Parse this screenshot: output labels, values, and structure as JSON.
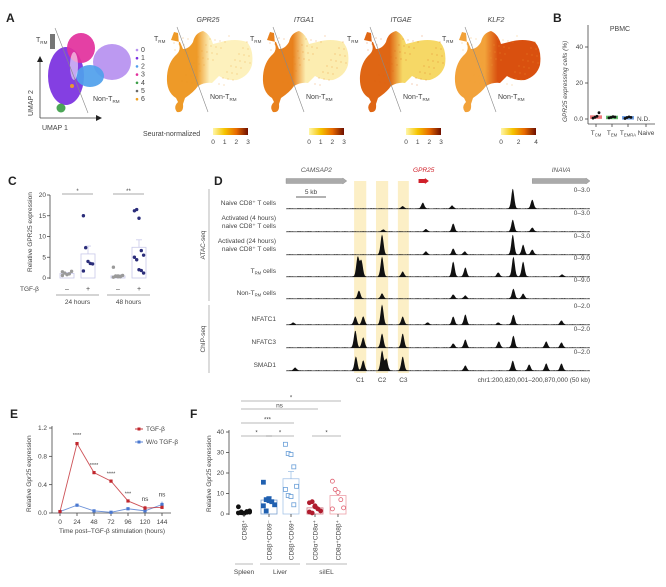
{
  "panel_labels": {
    "a": "A",
    "b": "B",
    "c": "C",
    "d": "D",
    "e": "E",
    "f": "F"
  },
  "panel_a": {
    "umap": {
      "xlabel": "UMAP 1",
      "ylabel": "UMAP 2",
      "trm_label": {
        "main": "T",
        "sub": "RM"
      },
      "non_trm_label": {
        "main": "Non-T",
        "sub": "RM"
      },
      "clusters": [
        {
          "id": "0",
          "color": "#b690f0"
        },
        {
          "id": "1",
          "color": "#7a2fe0"
        },
        {
          "id": "2",
          "color": "#4f9fec"
        },
        {
          "id": "3",
          "color": "#e2309c"
        },
        {
          "id": "4",
          "color": "#3c9e48"
        },
        {
          "id": "5",
          "color": "#6a6a6a"
        },
        {
          "id": "6",
          "color": "#f0a020"
        }
      ]
    },
    "colorbar_caption": "Seurat-normalized",
    "features": [
      {
        "gene": "GPR25",
        "ticks": [
          "0",
          "1",
          "2",
          "3"
        ],
        "left_color": "#ee9a28",
        "right_color": "#fdf1bd"
      },
      {
        "gene": "ITGA1",
        "ticks": [
          "0",
          "1",
          "2",
          "3"
        ],
        "left_color": "#e8801c",
        "right_color": "#fcedb0"
      },
      {
        "gene": "ITGAE",
        "ticks": [
          "0",
          "1",
          "2",
          "3"
        ],
        "left_color": "#df6614",
        "right_color": "#f6d866"
      },
      {
        "gene": "KLF2",
        "ticks": [
          "0",
          "2",
          "4"
        ],
        "left_color": "#f2a23a",
        "right_color": "#d9500f"
      }
    ],
    "colorbar_colors": [
      "#fff6a8",
      "#f5c400",
      "#e86a00",
      "#6e0f00"
    ]
  },
  "panel_d": {
    "genes": [
      {
        "name": "CAMSAP2",
        "color": "#aaaaaa",
        "start_kb": 0,
        "end_kb": 10
      },
      {
        "name": "GPR25",
        "color": "#d0202a",
        "start_kb": 21.8,
        "end_kb": 23.5
      },
      {
        "name": "INAVA",
        "color": "#aaaaaa",
        "start_kb": 40.5,
        "end_kb": 50
      }
    ],
    "scale_bar": "5 kb",
    "coordinates": "chr1:200,820,001–200,870,000 (50 kb)",
    "highlight_color": "#fbecbc",
    "regions": [
      {
        "label": "C1",
        "start_kb": 11.2,
        "end_kb": 13.2
      },
      {
        "label": "C2",
        "start_kb": 14.8,
        "end_kb": 16.8
      },
      {
        "label": "C3",
        "start_kb": 18.4,
        "end_kb": 20.2
      }
    ],
    "assay_groups": [
      {
        "label": "ATAC-seq",
        "tracks": [
          0,
          4
        ]
      },
      {
        "label": "ChIP-seq",
        "tracks": [
          5,
          7
        ]
      }
    ],
    "tracks": [
      {
        "label": [
          "Naive CD8⁺ T cells"
        ],
        "range": "0–3.0",
        "peaks": [
          [
            19.2,
            0.12
          ],
          [
            22.5,
            0.3
          ],
          [
            27.3,
            0.15
          ],
          [
            37.3,
            1.0
          ],
          [
            40.5,
            0.45
          ]
        ]
      },
      {
        "label": [
          "Activated (4 hours)",
          "naive CD8⁺ T cells"
        ],
        "range": "0–3.0",
        "peaks": [
          [
            16,
            0.1
          ],
          [
            23,
            0.12
          ],
          [
            27.5,
            0.4
          ],
          [
            37.3,
            0.6
          ],
          [
            40.5,
            0.2
          ]
        ]
      },
      {
        "label": [
          "Activated (24 hours)",
          "naive CD8⁺ T cells"
        ],
        "range": "0–3.0",
        "peaks": [
          [
            15.8,
            1.0
          ],
          [
            23,
            0.15
          ],
          [
            27.5,
            0.3
          ],
          [
            29.4,
            0.15
          ],
          [
            37.3,
            1.0
          ],
          [
            39,
            0.5
          ],
          [
            40.5,
            0.25
          ]
        ]
      },
      {
        "label": [
          {
            "main": "T",
            "sub": "RM",
            "rest": " cells"
          }
        ],
        "range": "0–9.0",
        "peaks": [
          [
            11.8,
            1.0
          ],
          [
            12.4,
            0.8
          ],
          [
            15.8,
            1.0
          ],
          [
            19.2,
            0.25
          ],
          [
            27.5,
            0.75
          ],
          [
            29.5,
            0.45
          ],
          [
            34.9,
            0.2
          ],
          [
            37.4,
            1.0
          ],
          [
            39,
            0.75
          ],
          [
            45.4,
            0.1
          ]
        ]
      },
      {
        "label": [
          {
            "main": "Non-T",
            "sub": "RM",
            "rest": " cells"
          }
        ],
        "range": "0–9.0",
        "peaks": [
          [
            12,
            0.4
          ],
          [
            15.8,
            0.25
          ],
          [
            27.5,
            0.2
          ],
          [
            29.5,
            0.15
          ],
          [
            37.4,
            0.5
          ],
          [
            39,
            0.25
          ]
        ]
      },
      {
        "label": [
          "NFATC1"
        ],
        "range": "0–2.0",
        "peaks": [
          [
            1.2,
            0.1
          ],
          [
            11.4,
            0.4
          ],
          [
            12.7,
            0.4
          ],
          [
            15.8,
            1.0
          ],
          [
            19.2,
            0.4
          ],
          [
            23.3,
            0.1
          ],
          [
            27.5,
            0.4
          ],
          [
            29.5,
            0.5
          ],
          [
            34.9,
            0.1
          ],
          [
            37.4,
            0.5
          ],
          [
            45.3,
            0.2
          ]
        ]
      },
      {
        "label": [
          "NFATC3"
        ],
        "range": "0–2.0",
        "peaks": [
          [
            11.4,
            0.85
          ],
          [
            12.7,
            0.5
          ],
          [
            15.8,
            0.7
          ],
          [
            19.2,
            0.7
          ],
          [
            27.5,
            0.2
          ],
          [
            29.5,
            0.4
          ],
          [
            35,
            0.3
          ],
          [
            37.4,
            0.6
          ],
          [
            42.8,
            0.3
          ],
          [
            45.3,
            0.25
          ]
        ]
      },
      {
        "label": [
          "SMAD1"
        ],
        "range": "0–2.0",
        "peaks": [
          [
            1.5,
            0.15
          ],
          [
            11.5,
            0.7
          ],
          [
            12.7,
            0.5
          ],
          [
            15.8,
            1.0
          ],
          [
            16.5,
            0.6
          ],
          [
            19.2,
            0.7
          ],
          [
            29.5,
            0.25
          ],
          [
            37.3,
            0.5
          ],
          [
            40,
            0.3
          ],
          [
            42.8,
            0.35
          ],
          [
            45.3,
            0.35
          ]
        ]
      }
    ]
  },
  "chart_data": [
    {
      "panel": "B",
      "type": "bar",
      "title": "PBMC",
      "ylabel": "GPR25 expressing cells (%)",
      "ylim": [
        0,
        50
      ],
      "yticks": [
        {
          "value": 0,
          "label": "0.0"
        },
        {
          "value": 20,
          "label": "20"
        },
        {
          "value": 40,
          "label": "40"
        }
      ],
      "categories": [
        {
          "main": "T",
          "sub": "CM"
        },
        {
          "main": "T",
          "sub": "EM"
        },
        {
          "main": "T",
          "sub": "EMRA"
        },
        {
          "main": "Naive",
          "sub": ""
        }
      ],
      "values": [
        1.2,
        1.0,
        0.8,
        null
      ],
      "points": [
        [
          0.5,
          1.0,
          1.5,
          3.5
        ],
        [
          0.6,
          0.9,
          1.3,
          1.1
        ],
        [
          0.3,
          0.8,
          1.2,
          0.9
        ]
      ],
      "colors": [
        "#e8585a",
        "#3cb04a",
        "#4a88e0"
      ],
      "annotation": "N.D."
    },
    {
      "panel": "C",
      "type": "bar",
      "ylabel": "Relative GPR25 expression",
      "ylim": [
        0,
        20
      ],
      "yticks": [
        0,
        5,
        10,
        15,
        20
      ],
      "treatment_label": "TGF-β",
      "groups": [
        {
          "label": "24 hours",
          "significance": "*",
          "conditions": [
            {
              "sign": "–",
              "mean": 1.1,
              "sem": 0.2,
              "points": [
                1.5,
                1.2,
                0.8,
                1.0,
                1.6,
                0.6
              ]
            },
            {
              "sign": "+",
              "mean": 5.8,
              "sem": 1.9,
              "points": [
                15.0,
                7.3,
                4.0,
                3.5,
                3.4,
                1.7
              ]
            }
          ]
        },
        {
          "label": "48 hours",
          "significance": "**",
          "conditions": [
            {
              "sign": "–",
              "mean": 0.5,
              "sem": 0.25,
              "points": [
                2.6,
                0.5,
                0.3,
                0.4,
                0.6,
                0.2,
                0.4,
                0.5,
                0.3
              ]
            },
            {
              "sign": "+",
              "mean": 7.4,
              "sem": 1.8,
              "points": [
                16.2,
                16.5,
                14.4,
                6.6,
                5.5,
                5.0,
                4.4,
                2.0,
                1.8,
                1.2
              ]
            }
          ]
        }
      ],
      "colors": {
        "minus": "#9a9a9a",
        "plus": "#2b2d7a",
        "bar": "#c9c9ea"
      }
    },
    {
      "panel": "E",
      "type": "line",
      "xlabel": "Time post–TGF-β stimulation (hours)",
      "ylabel": "Relative Gpr25 expression",
      "x": [
        0,
        24,
        48,
        72,
        96,
        120,
        144
      ],
      "xlim": [
        0,
        144
      ],
      "ylim": [
        0,
        1.2
      ],
      "yticks": [
        {
          "value": 0,
          "label": "0.0"
        },
        {
          "value": 0.4,
          "label": "0.4"
        },
        {
          "value": 0.8,
          "label": "0.8"
        },
        {
          "value": 1.2,
          "label": "1.2"
        }
      ],
      "series": [
        {
          "name": "TGF-β",
          "color": "#c0272d",
          "values": [
            0.02,
            0.98,
            0.57,
            0.45,
            0.17,
            0.07,
            0.08
          ],
          "sem": [
            0,
            0.02,
            0.01,
            0.01,
            0.01,
            0.03,
            0.02
          ]
        },
        {
          "name": "W/o TGF-β",
          "color": "#4a78d0",
          "values": [
            0.02,
            0.11,
            0.03,
            0.01,
            0.06,
            0.03,
            0.12
          ],
          "sem": [
            0,
            0.01,
            0.01,
            0.01,
            0.01,
            0.01,
            0.04
          ]
        }
      ],
      "significance": [
        "",
        "****",
        "****",
        "****",
        "***",
        "ns",
        "ns"
      ],
      "legend": "top-right"
    },
    {
      "panel": "F",
      "type": "bar",
      "ylabel": "Relative Gpr25 expression",
      "ylim": [
        0,
        40
      ],
      "yticks": [
        0,
        10,
        20,
        30,
        40
      ],
      "categories": [
        "CD8β⁺",
        "CD8β⁺CD69⁻",
        "CD8β⁺CD69⁺",
        "CD8α⁺CD8α⁺",
        "CD8α⁺CD8β⁺"
      ],
      "groups": [
        {
          "label": "Spleen",
          "from": 0,
          "to": 0
        },
        {
          "label": "Liver",
          "from": 1,
          "to": 2
        },
        {
          "label": "siIEL",
          "from": 3,
          "to": 4
        }
      ],
      "means": [
        1.0,
        6.8,
        17.2,
        3.0,
        9.0
      ],
      "sem": [
        0.3,
        1.5,
        3.5,
        0.8,
        2.0
      ],
      "points": [
        [
          0.5,
          1.0,
          0.3,
          0.8,
          1.5,
          3.5,
          0.6,
          0.4,
          1.2,
          0.9
        ],
        [
          15.5,
          7.0,
          6.5,
          6.0,
          4.5,
          4.0,
          1.5,
          7.5
        ],
        [
          34.0,
          29.5,
          29.0,
          23.0,
          13.5,
          12.0,
          9.0,
          8.5,
          4.5
        ],
        [
          5.5,
          6.0,
          4.0,
          2.5,
          1.5,
          1.0,
          0.5,
          3.5
        ],
        [
          16.0,
          12.0,
          10.5,
          7.0,
          3.0,
          2.5
        ]
      ],
      "colors": [
        "#111111",
        "#2060b0",
        "#6a9fd8",
        "#b01c2e",
        "#e06070"
      ],
      "markers": [
        "circle-filled",
        "square-filled",
        "square-open",
        "circle-filled",
        "circle-open"
      ],
      "comparisons": [
        {
          "from": 0,
          "to": 1,
          "label": "*"
        },
        {
          "from": 1,
          "to": 2,
          "label": "*"
        },
        {
          "from": 3,
          "to": 4,
          "label": "*"
        },
        {
          "from": 0,
          "to": 2,
          "label": "***"
        },
        {
          "from": 0,
          "to": 3,
          "label": "ns"
        },
        {
          "from": 0,
          "to": 4,
          "label": "*"
        }
      ]
    }
  ]
}
